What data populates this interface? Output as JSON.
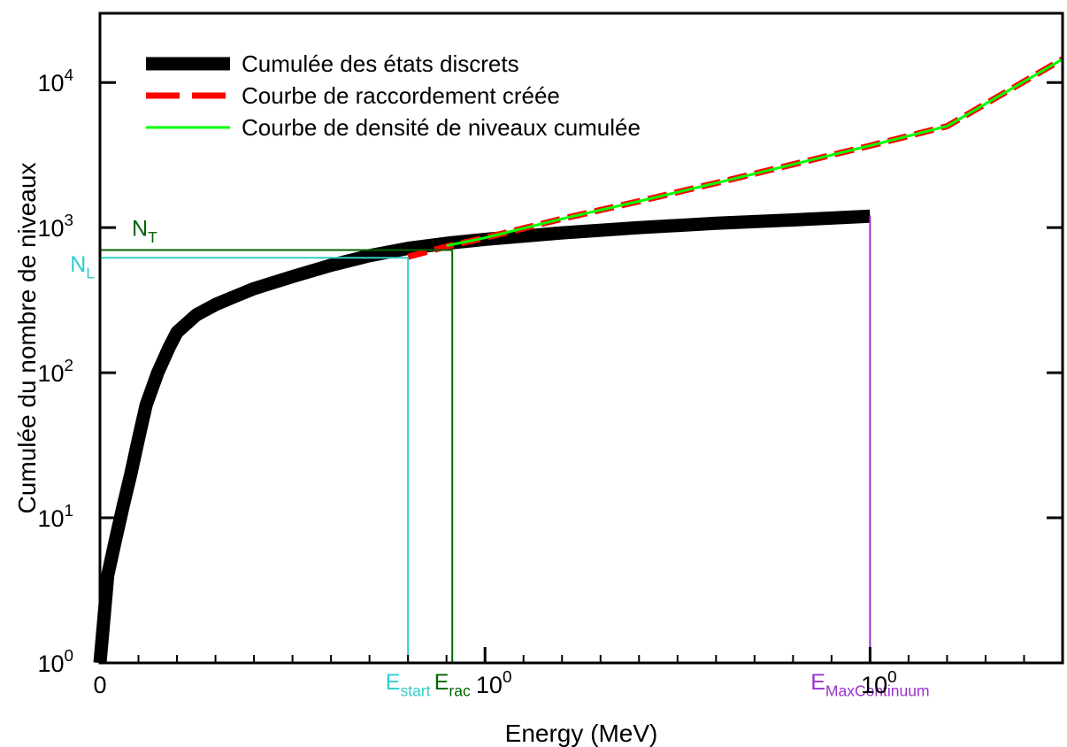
{
  "chart_data": {
    "type": "line",
    "title": "",
    "xlabel": "Energy (MeV)",
    "ylabel": "Cumulée du nombre de niveaux",
    "xlim": [
      0,
      2.5
    ],
    "ylim": [
      1,
      30000
    ],
    "y_scale": "log",
    "grid": false,
    "legend_position": "top-left",
    "x_ticks": [
      {
        "x": 0,
        "label": "0"
      },
      {
        "x": 1,
        "label": "10",
        "sup": "0"
      },
      {
        "x": 2,
        "label": "10",
        "sup": "0"
      }
    ],
    "y_ticks": [
      {
        "y": 1,
        "label": "10",
        "sup": "0"
      },
      {
        "y": 10,
        "label": "10",
        "sup": "1"
      },
      {
        "y": 100,
        "label": "10",
        "sup": "2"
      },
      {
        "y": 1000,
        "label": "10",
        "sup": "3"
      },
      {
        "y": 10000,
        "label": "10",
        "sup": "4"
      }
    ],
    "series": [
      {
        "name": "Cumulée des états discrets",
        "color": "#000000",
        "style": "thick",
        "x": [
          0,
          0.01,
          0.02,
          0.04,
          0.06,
          0.08,
          0.1,
          0.12,
          0.15,
          0.18,
          0.2,
          0.25,
          0.3,
          0.35,
          0.4,
          0.5,
          0.6,
          0.7,
          0.8,
          0.9,
          1.0,
          1.2,
          1.4,
          1.6,
          1.8,
          2.0
        ],
        "y": [
          1,
          2,
          4,
          7,
          12,
          20,
          35,
          60,
          100,
          150,
          190,
          250,
          295,
          335,
          380,
          460,
          550,
          640,
          720,
          780,
          830,
          920,
          1000,
          1070,
          1130,
          1200
        ]
      },
      {
        "name": "Courbe de raccordement créée",
        "color": "#ff0000",
        "style": "dashed",
        "x": [
          0.8,
          0.9,
          1.0,
          1.2,
          1.4,
          1.6,
          1.8,
          2.0,
          2.2,
          2.5
        ],
        "y": [
          630,
          740,
          850,
          1150,
          1520,
          2030,
          2730,
          3670,
          5000,
          14500
        ]
      },
      {
        "name": "Courbe de densité de niveaux cumulée",
        "color": "#00ff00",
        "style": "solid",
        "x": [
          0.9,
          1.0,
          1.2,
          1.4,
          1.6,
          1.8,
          2.0,
          2.2,
          2.5
        ],
        "y": [
          750,
          850,
          1150,
          1520,
          2030,
          2730,
          3670,
          5000,
          14500
        ]
      }
    ],
    "markers": [
      {
        "name": "E",
        "sub": "start",
        "color": "#33cccc",
        "x": 0.8,
        "y": 620,
        "y_name": "N",
        "y_sub": "L"
      },
      {
        "name": "E",
        "sub": "rac",
        "color": "#006600",
        "x": 0.915,
        "y": 700,
        "y_name": "N",
        "y_sub": "T"
      },
      {
        "name": "E",
        "sub": "MaxContinuum",
        "color": "#9933cc",
        "x": 2.0,
        "y": 1200
      }
    ]
  }
}
